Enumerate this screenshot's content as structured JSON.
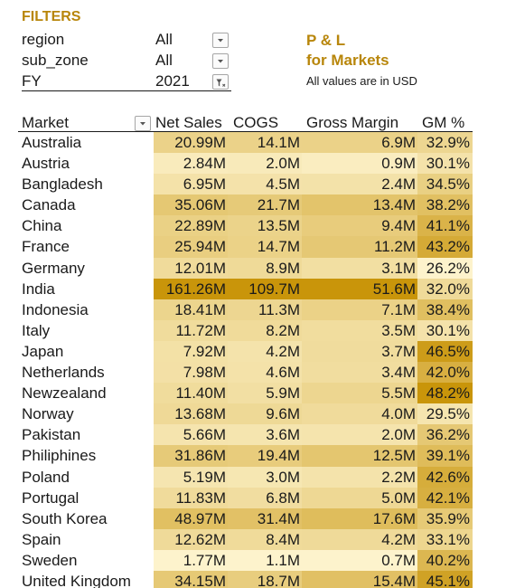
{
  "filters": {
    "title": "FILTERS",
    "items": [
      {
        "name": "region",
        "value": "All",
        "icon": "dropdown-arrow-icon"
      },
      {
        "name": "sub_zone",
        "value": "All",
        "icon": "dropdown-arrow-icon"
      },
      {
        "name": "FY",
        "value": "2021",
        "icon": "filter-active-icon"
      }
    ]
  },
  "report": {
    "title_line1": "P & L",
    "title_line2": "for Markets",
    "note": "All values are in USD"
  },
  "table": {
    "headers": {
      "market": "Market",
      "net_sales": "Net Sales",
      "cogs": "COGS",
      "gross_margin": "Gross Margin",
      "gm_pct": "GM %"
    },
    "colors": {
      "min": "#fdf3cc",
      "max": "#c9950a",
      "header_accent": "#b8860b"
    },
    "rows": [
      {
        "market": "Australia",
        "net_sales": "20.99M",
        "cogs": "14.1M",
        "gross_margin": "6.9M",
        "gm_pct": "32.9%",
        "ns": 20.99,
        "cg": 14.1,
        "gmv": 6.9,
        "gp": 32.9
      },
      {
        "market": "Austria",
        "net_sales": "2.84M",
        "cogs": "2.0M",
        "gross_margin": "0.9M",
        "gm_pct": "30.1%",
        "ns": 2.84,
        "cg": 2.0,
        "gmv": 0.9,
        "gp": 30.1
      },
      {
        "market": "Bangladesh",
        "net_sales": "6.95M",
        "cogs": "4.5M",
        "gross_margin": "2.4M",
        "gm_pct": "34.5%",
        "ns": 6.95,
        "cg": 4.5,
        "gmv": 2.4,
        "gp": 34.5
      },
      {
        "market": "Canada",
        "net_sales": "35.06M",
        "cogs": "21.7M",
        "gross_margin": "13.4M",
        "gm_pct": "38.2%",
        "ns": 35.06,
        "cg": 21.7,
        "gmv": 13.4,
        "gp": 38.2
      },
      {
        "market": "China",
        "net_sales": "22.89M",
        "cogs": "13.5M",
        "gross_margin": "9.4M",
        "gm_pct": "41.1%",
        "ns": 22.89,
        "cg": 13.5,
        "gmv": 9.4,
        "gp": 41.1
      },
      {
        "market": "France",
        "net_sales": "25.94M",
        "cogs": "14.7M",
        "gross_margin": "11.2M",
        "gm_pct": "43.2%",
        "ns": 25.94,
        "cg": 14.7,
        "gmv": 11.2,
        "gp": 43.2
      },
      {
        "market": "Germany",
        "net_sales": "12.01M",
        "cogs": "8.9M",
        "gross_margin": "3.1M",
        "gm_pct": "26.2%",
        "ns": 12.01,
        "cg": 8.9,
        "gmv": 3.1,
        "gp": 26.2
      },
      {
        "market": "India",
        "net_sales": "161.26M",
        "cogs": "109.7M",
        "gross_margin": "51.6M",
        "gm_pct": "32.0%",
        "ns": 161.26,
        "cg": 109.7,
        "gmv": 51.6,
        "gp": 32.0
      },
      {
        "market": "Indonesia",
        "net_sales": "18.41M",
        "cogs": "11.3M",
        "gross_margin": "7.1M",
        "gm_pct": "38.4%",
        "ns": 18.41,
        "cg": 11.3,
        "gmv": 7.1,
        "gp": 38.4
      },
      {
        "market": "Italy",
        "net_sales": "11.72M",
        "cogs": "8.2M",
        "gross_margin": "3.5M",
        "gm_pct": "30.1%",
        "ns": 11.72,
        "cg": 8.2,
        "gmv": 3.5,
        "gp": 30.1
      },
      {
        "market": "Japan",
        "net_sales": "7.92M",
        "cogs": "4.2M",
        "gross_margin": "3.7M",
        "gm_pct": "46.5%",
        "ns": 7.92,
        "cg": 4.2,
        "gmv": 3.7,
        "gp": 46.5
      },
      {
        "market": "Netherlands",
        "net_sales": "7.98M",
        "cogs": "4.6M",
        "gross_margin": "3.4M",
        "gm_pct": "42.0%",
        "ns": 7.98,
        "cg": 4.6,
        "gmv": 3.4,
        "gp": 42.0
      },
      {
        "market": "Newzealand",
        "net_sales": "11.40M",
        "cogs": "5.9M",
        "gross_margin": "5.5M",
        "gm_pct": "48.2%",
        "ns": 11.4,
        "cg": 5.9,
        "gmv": 5.5,
        "gp": 48.2
      },
      {
        "market": "Norway",
        "net_sales": "13.68M",
        "cogs": "9.6M",
        "gross_margin": "4.0M",
        "gm_pct": "29.5%",
        "ns": 13.68,
        "cg": 9.6,
        "gmv": 4.0,
        "gp": 29.5
      },
      {
        "market": "Pakistan",
        "net_sales": "5.66M",
        "cogs": "3.6M",
        "gross_margin": "2.0M",
        "gm_pct": "36.2%",
        "ns": 5.66,
        "cg": 3.6,
        "gmv": 2.0,
        "gp": 36.2
      },
      {
        "market": "Philiphines",
        "net_sales": "31.86M",
        "cogs": "19.4M",
        "gross_margin": "12.5M",
        "gm_pct": "39.1%",
        "ns": 31.86,
        "cg": 19.4,
        "gmv": 12.5,
        "gp": 39.1
      },
      {
        "market": "Poland",
        "net_sales": "5.19M",
        "cogs": "3.0M",
        "gross_margin": "2.2M",
        "gm_pct": "42.6%",
        "ns": 5.19,
        "cg": 3.0,
        "gmv": 2.2,
        "gp": 42.6
      },
      {
        "market": "Portugal",
        "net_sales": "11.83M",
        "cogs": "6.8M",
        "gross_margin": "5.0M",
        "gm_pct": "42.1%",
        "ns": 11.83,
        "cg": 6.8,
        "gmv": 5.0,
        "gp": 42.1
      },
      {
        "market": "South Korea",
        "net_sales": "48.97M",
        "cogs": "31.4M",
        "gross_margin": "17.6M",
        "gm_pct": "35.9%",
        "ns": 48.97,
        "cg": 31.4,
        "gmv": 17.6,
        "gp": 35.9
      },
      {
        "market": "Spain",
        "net_sales": "12.62M",
        "cogs": "8.4M",
        "gross_margin": "4.2M",
        "gm_pct": "33.1%",
        "ns": 12.62,
        "cg": 8.4,
        "gmv": 4.2,
        "gp": 33.1
      },
      {
        "market": "Sweden",
        "net_sales": "1.77M",
        "cogs": "1.1M",
        "gross_margin": "0.7M",
        "gm_pct": "40.2%",
        "ns": 1.77,
        "cg": 1.1,
        "gmv": 0.7,
        "gp": 40.2
      },
      {
        "market": "United Kingdom",
        "net_sales": "34.15M",
        "cogs": "18.7M",
        "gross_margin": "15.4M",
        "gm_pct": "45.1%",
        "ns": 34.15,
        "cg": 18.7,
        "gmv": 15.4,
        "gp": 45.1
      }
    ]
  }
}
